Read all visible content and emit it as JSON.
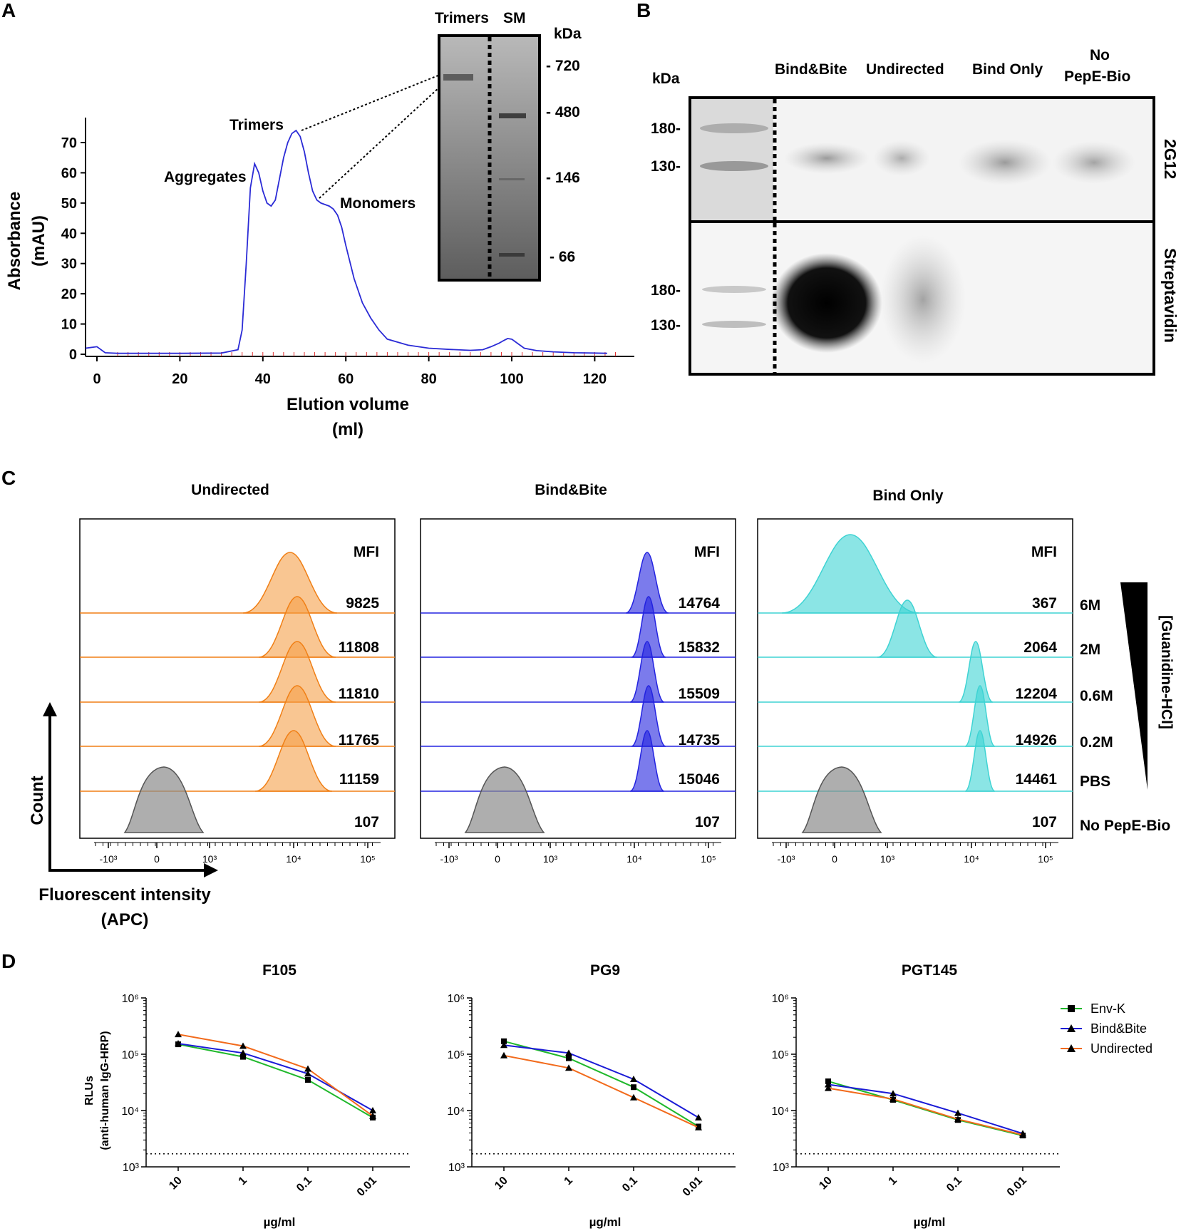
{
  "panel_labels": [
    "A",
    "B",
    "C",
    "D"
  ],
  "colors": {
    "sec": "#2b2bd6",
    "undirected": "#f5a04a",
    "undirected_line": "#f07f15",
    "bindbite": "#2323e0",
    "bindonly": "#3ed3d3",
    "gray": "#8c8c8c",
    "envk": "#1fb82b",
    "bb_line": "#1a1ad6",
    "und_line": "#f26a1b"
  },
  "panelA": {
    "chart_data": {
      "type": "line",
      "title": "",
      "xlabel": "Elution volume",
      "xlabel_unit": "(ml)",
      "ylabel": "Absorbance",
      "ylabel_unit": "(mAU)",
      "xlim": [
        -2,
        128
      ],
      "ylim": [
        -2,
        78
      ],
      "xticks": [
        "0",
        "20",
        "40",
        "60",
        "80",
        "100",
        "120"
      ],
      "yticks": [
        "0",
        "10",
        "20",
        "30",
        "40",
        "50",
        "60",
        "70"
      ],
      "series": [
        {
          "name": "SEC trace",
          "x": [
            -3,
            0,
            2,
            5,
            10,
            20,
            30,
            34,
            35,
            36,
            37,
            38,
            39,
            40,
            41,
            42,
            43,
            44,
            45,
            46,
            47,
            48,
            49,
            50,
            51,
            52,
            53,
            54,
            55,
            56,
            57,
            58,
            59,
            60,
            62,
            64,
            66,
            68,
            70,
            75,
            80,
            85,
            90,
            93,
            95,
            97,
            98,
            99,
            100,
            101,
            103,
            106,
            110,
            115,
            120,
            123
          ],
          "y": [
            2,
            2.5,
            0.5,
            0.3,
            0.3,
            0.3,
            0.4,
            1.5,
            8,
            30,
            55,
            63,
            60,
            54,
            50,
            49,
            51,
            58,
            65,
            70,
            73,
            74,
            72,
            67,
            60,
            54,
            51,
            50,
            49.5,
            49,
            48,
            46,
            42,
            36,
            25,
            17,
            12,
            8,
            5,
            3,
            2,
            1.6,
            1.3,
            1.5,
            2.5,
            3.7,
            4.5,
            5.2,
            5,
            4,
            2,
            1.2,
            0.8,
            0.5,
            0.4,
            0.3
          ]
        }
      ],
      "annotations": [
        "Trimers",
        "Aggregates",
        "Monomers"
      ]
    },
    "gel": {
      "lane_labels": [
        "Trimers",
        "SM"
      ],
      "unit": "kDa",
      "markers": [
        "- 720",
        "- 480",
        "- 146",
        "- 66"
      ]
    }
  },
  "panelB": {
    "unit": "kDa",
    "lanes": [
      "Bind&Bite",
      "Undirected",
      "Bind Only",
      "No",
      "PepE-Bio"
    ],
    "top_markers": [
      "180-",
      "130-"
    ],
    "bottom_markers": [
      "180-",
      "130-"
    ],
    "blot_labels": [
      "2G12",
      "Streptavidin"
    ]
  },
  "panelC": {
    "chart_data": [
      {
        "type": "histogram",
        "title": "Undirected",
        "header": "MFI",
        "mfi": [
          "9825",
          "11808",
          "11810",
          "11765",
          "11159",
          "107"
        ]
      },
      {
        "type": "histogram",
        "title": "Bind&Bite",
        "header": "MFI",
        "mfi": [
          "14764",
          "15832",
          "15509",
          "14735",
          "15046",
          "107"
        ]
      },
      {
        "type": "histogram",
        "title": "Bind Only",
        "header": "MFI",
        "mfi": [
          "367",
          "2064",
          "12204",
          "14926",
          "14461",
          "107"
        ]
      }
    ],
    "conditions": [
      "6M",
      "2M",
      "0.6M",
      "0.2M",
      "PBS",
      "No PepE-Bio"
    ],
    "gradient_label": "[Guanidine-HCl]",
    "xticks": [
      "-10³",
      "0",
      "10³",
      "10⁴",
      "10⁵"
    ],
    "axis_y": "Count",
    "axis_x": "Fluorescent intensity",
    "axis_x_unit": "(APC)"
  },
  "panelD": {
    "ylabel": "RLUs",
    "ylabel2": "(anti-human IgG-HRP)",
    "xlabel": "µg/ml",
    "xcats": [
      "10",
      "1",
      "0.1",
      "0.01"
    ],
    "yticks": [
      "10⁶",
      "10⁵",
      "10⁴",
      "10³"
    ],
    "legend": [
      "Env-K",
      "Bind&Bite",
      "Undirected"
    ],
    "chart_data": [
      {
        "type": "line",
        "title": "F105",
        "log_y": true,
        "ylim": [
          1000,
          1000000
        ],
        "cutoff": 1700,
        "series": [
          {
            "name": "Env-K",
            "values": [
              150000,
              90000,
              35000,
              7500
            ]
          },
          {
            "name": "Bind&Bite",
            "values": [
              155000,
              105000,
              45000,
              10000
            ]
          },
          {
            "name": "Undirected",
            "values": [
              225000,
              140000,
              55000,
              8000
            ]
          }
        ]
      },
      {
        "type": "line",
        "title": "PG9",
        "log_y": true,
        "ylim": [
          1000,
          1000000
        ],
        "cutoff": 1700,
        "series": [
          {
            "name": "Env-K",
            "values": [
              170000,
              85000,
              26000,
              5200
            ]
          },
          {
            "name": "Bind&Bite",
            "values": [
              145000,
              105000,
              36000,
              7500
            ]
          },
          {
            "name": "Undirected",
            "values": [
              95000,
              57000,
              17000,
              5000
            ]
          }
        ]
      },
      {
        "type": "line",
        "title": "PGT145",
        "log_y": true,
        "ylim": [
          1000,
          1000000
        ],
        "cutoff": 1700,
        "series": [
          {
            "name": "Env-K",
            "values": [
              33000,
              15500,
              6800,
              3600
            ]
          },
          {
            "name": "Bind&Bite",
            "values": [
              29000,
              20000,
              9000,
              3900
            ]
          },
          {
            "name": "Undirected",
            "values": [
              25000,
              16000,
              7000,
              3700
            ]
          }
        ]
      }
    ]
  }
}
